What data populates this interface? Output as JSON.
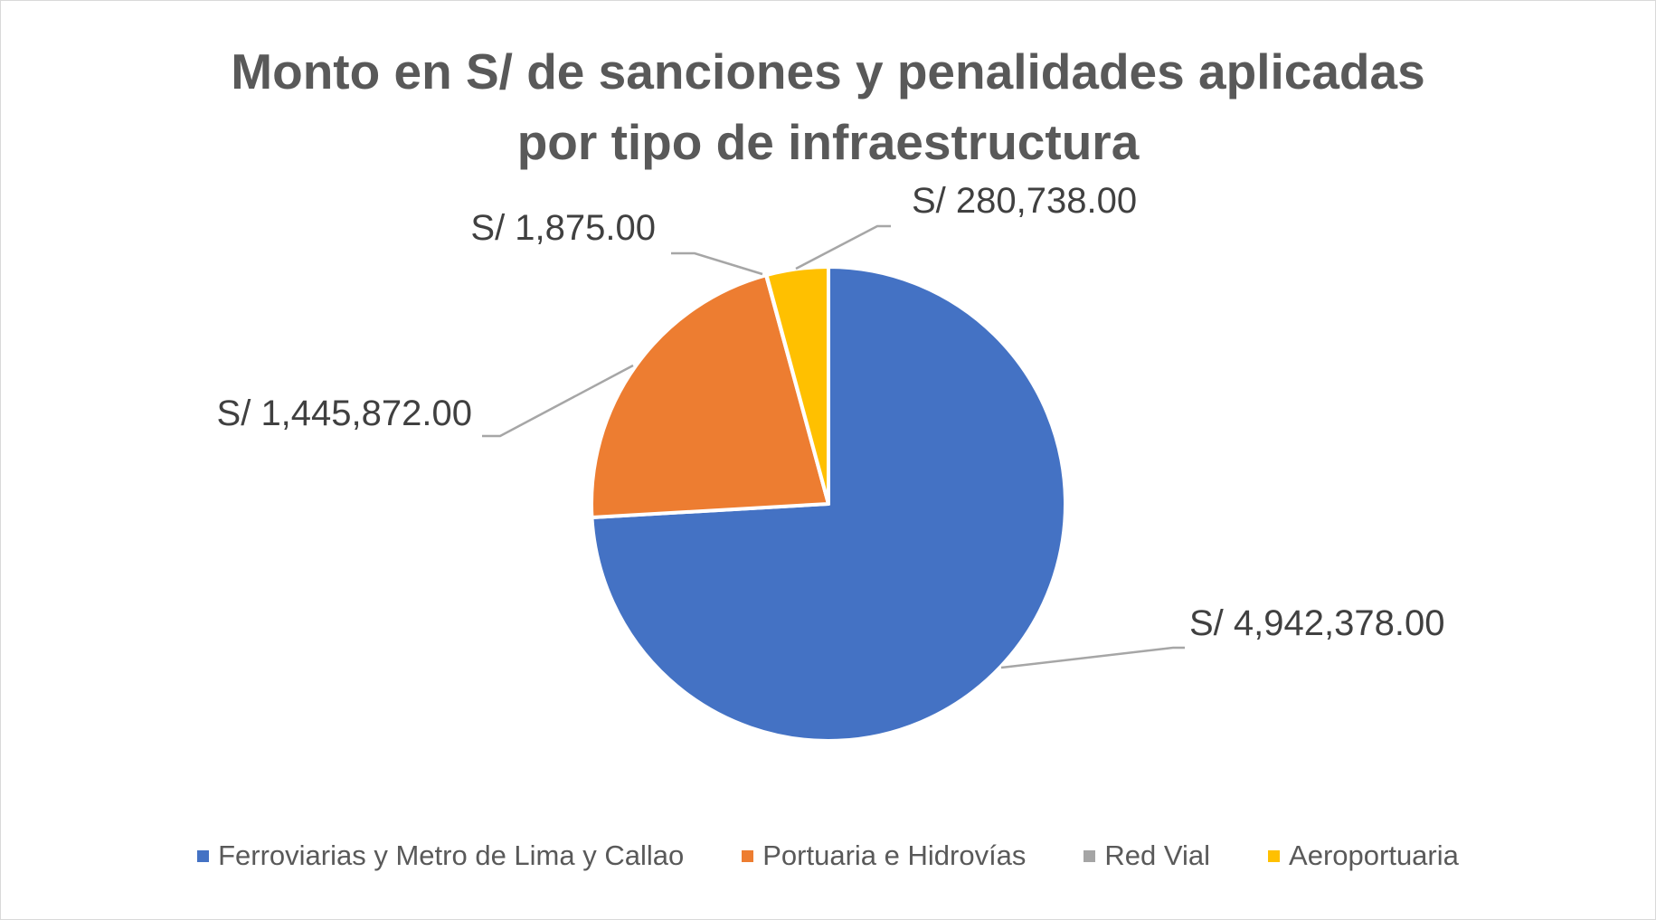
{
  "chart_data": {
    "type": "pie",
    "title_lines": [
      "Monto en S/ de sanciones y penalidades aplicadas",
      "por tipo de infraestructura"
    ],
    "legend_position": "bottom",
    "slices": [
      {
        "name": "Ferroviarias y Metro de Lima y Callao",
        "value": 4942378.0,
        "label": "S/ 4,942,378.00",
        "color": "#4472C4"
      },
      {
        "name": "Portuaria  e Hidrovías",
        "value": 1445872.0,
        "label": "S/ 1,445,872.00",
        "color": "#ED7D31"
      },
      {
        "name": "Red Vial",
        "value": 1875.0,
        "label": "S/ 1,875.00",
        "color": "#A5A5A5"
      },
      {
        "name": "Aeroportuaria",
        "value": 280738.0,
        "label": "S/ 280,738.00",
        "color": "#FFC000"
      }
    ]
  }
}
